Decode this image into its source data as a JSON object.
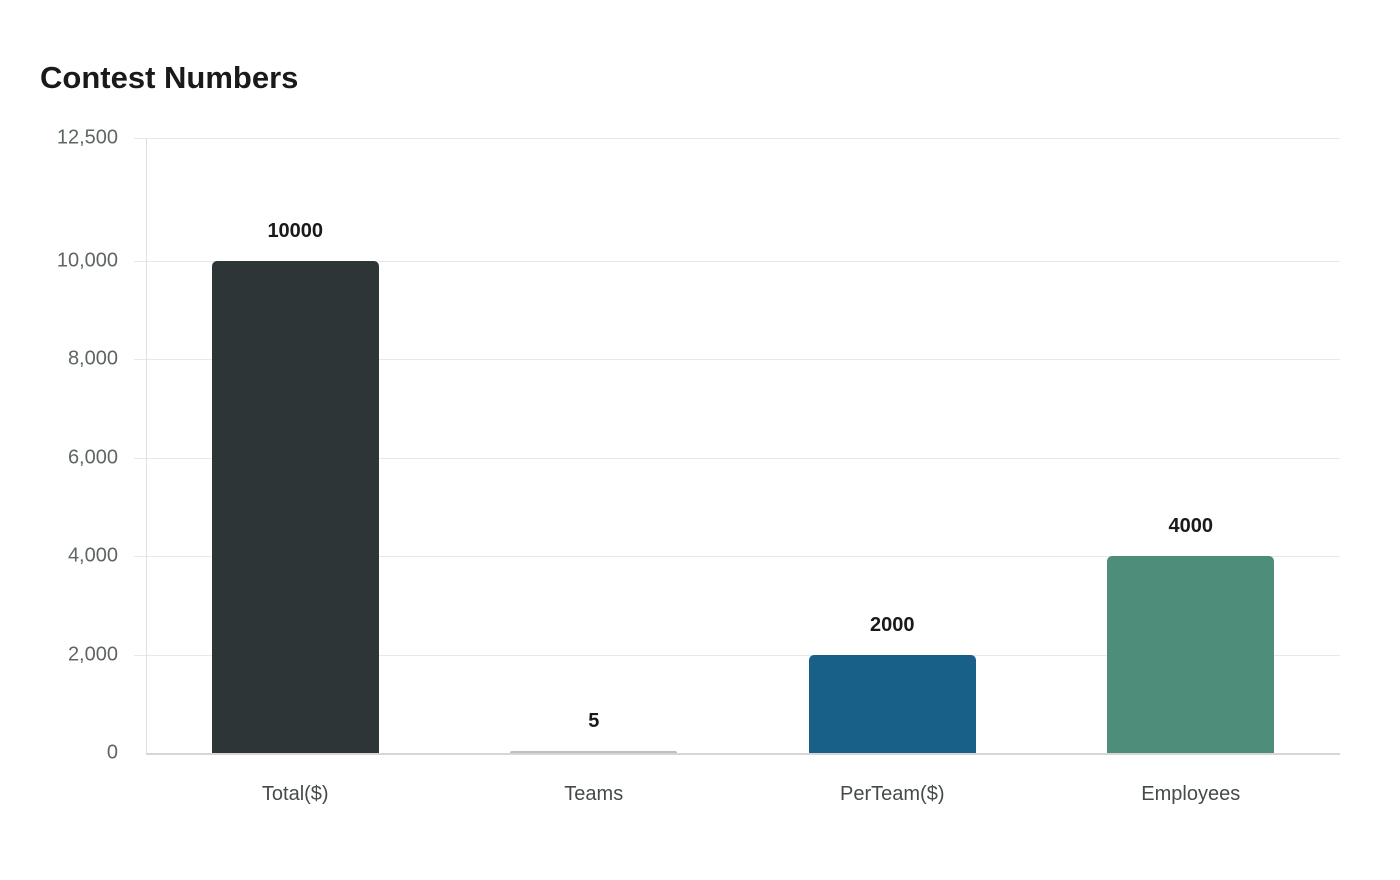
{
  "chart_data": {
    "type": "bar",
    "title": "Contest Numbers",
    "xlabel": "",
    "ylabel": "",
    "categories": [
      "Total($)",
      "Teams",
      "PerTeam($)",
      "Employees"
    ],
    "values": [
      10000,
      5,
      2000,
      4000
    ],
    "value_labels": [
      "10000",
      "5",
      "2000",
      "4000"
    ],
    "colors": [
      "#2d3537",
      "#b9c0c2",
      "#186087",
      "#4f8d7b"
    ],
    "ylim": [
      0,
      12500
    ],
    "yticks": [
      0,
      2000,
      4000,
      6000,
      8000,
      10000,
      12500
    ],
    "ytick_labels": [
      "0",
      "2,000",
      "4,000",
      "6,000",
      "8,000",
      "10,000",
      "12,500"
    ],
    "grid": true,
    "legend": null
  }
}
